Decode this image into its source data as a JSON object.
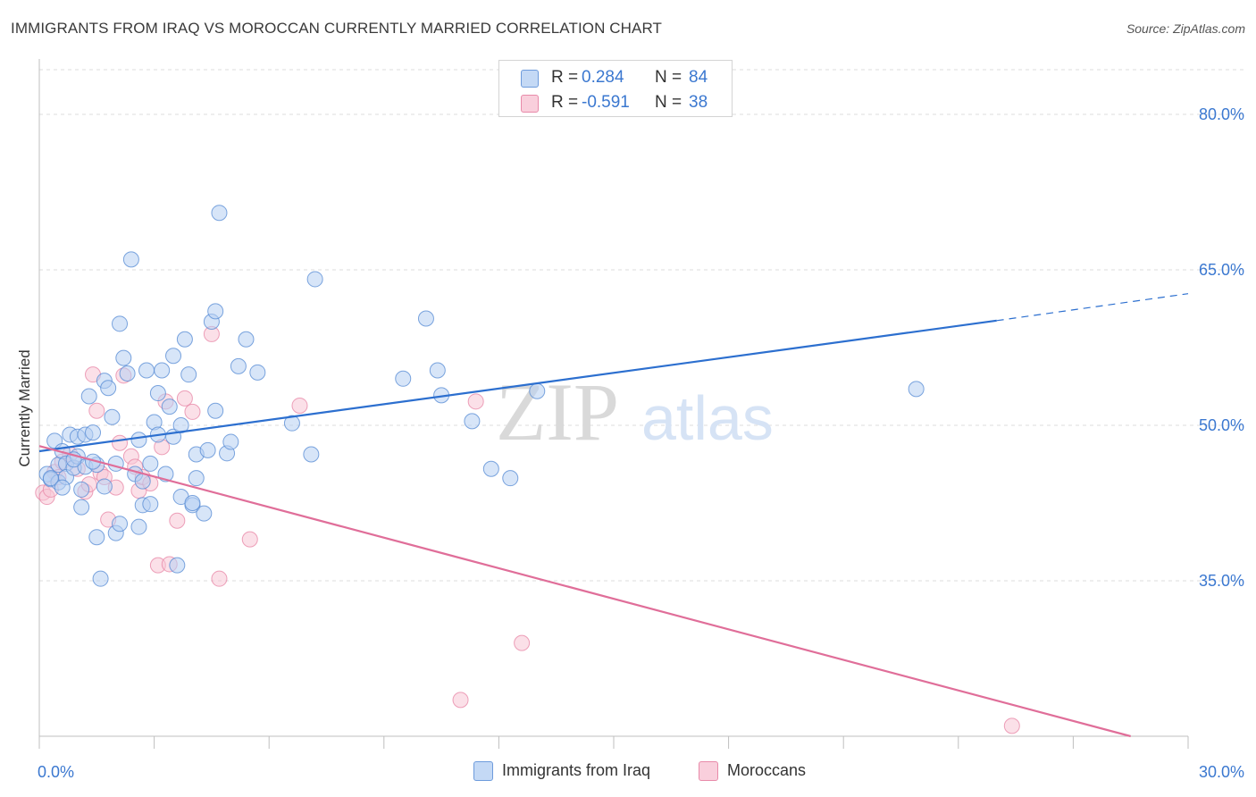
{
  "header": {
    "title": "IMMIGRANTS FROM IRAQ VS MOROCCAN CURRENTLY MARRIED CORRELATION CHART",
    "source": "Source: ZipAtlas.com"
  },
  "watermark": {
    "zip": "ZIP",
    "atlas": "atlas"
  },
  "legend": {
    "rows": [
      {
        "r_label": "R =",
        "r_value": "0.284",
        "n_label": "N =",
        "n_value": "84",
        "color": "#a9c8f0"
      },
      {
        "r_label": "R =",
        "r_value": "-0.591",
        "n_label": "N =",
        "n_value": "38",
        "color": "#f6b8cc"
      }
    ]
  },
  "bottom_legend": {
    "items": [
      {
        "label": "Immigrants from Iraq",
        "color": "#a9c8f0"
      },
      {
        "label": "Moroccans",
        "color": "#f6b8cc"
      }
    ]
  },
  "chart_data": {
    "type": "scatter",
    "title": "IMMIGRANTS FROM IRAQ VS MOROCCAN CURRENTLY MARRIED CORRELATION CHART",
    "xlabel": "",
    "ylabel": "Currently Married",
    "xlim": [
      0,
      30
    ],
    "ylim": [
      20,
      85
    ],
    "x_tick_labels": [
      "0.0%",
      "30.0%"
    ],
    "y_ticks": [
      35,
      50,
      65,
      80
    ],
    "y_tick_labels": [
      "35.0%",
      "50.0%",
      "65.0%",
      "80.0%"
    ],
    "grid": "horizontal dashed",
    "legend_position": "top-center",
    "colors": {
      "iraq": "#5b8fd6",
      "iraq_fill": "#b7d0f2",
      "iraq_line": "#2c6fcf",
      "moroccan": "#e88aa9",
      "moroccan_fill": "#f8c6d6",
      "moroccan_line": "#e06e99"
    },
    "series": [
      {
        "name": "Immigrants from Iraq",
        "points": [
          [
            0.2,
            45.3
          ],
          [
            0.3,
            44.8
          ],
          [
            0.4,
            48.5
          ],
          [
            0.5,
            46.2
          ],
          [
            0.5,
            44.5
          ],
          [
            0.6,
            47.5
          ],
          [
            0.7,
            46.3
          ],
          [
            0.7,
            45.0
          ],
          [
            0.8,
            49.1
          ],
          [
            0.9,
            45.9
          ],
          [
            1.0,
            48.9
          ],
          [
            1.0,
            47.0
          ],
          [
            1.1,
            43.8
          ],
          [
            1.1,
            42.1
          ],
          [
            1.2,
            46.0
          ],
          [
            1.2,
            49.1
          ],
          [
            1.3,
            52.8
          ],
          [
            1.4,
            49.3
          ],
          [
            1.5,
            46.2
          ],
          [
            1.5,
            39.2
          ],
          [
            1.6,
            35.2
          ],
          [
            1.7,
            44.1
          ],
          [
            1.7,
            54.3
          ],
          [
            1.8,
            53.6
          ],
          [
            1.9,
            50.8
          ],
          [
            2.0,
            39.6
          ],
          [
            2.0,
            46.3
          ],
          [
            2.1,
            40.5
          ],
          [
            2.1,
            59.8
          ],
          [
            2.2,
            56.5
          ],
          [
            2.3,
            55.0
          ],
          [
            2.4,
            66.0
          ],
          [
            2.5,
            45.3
          ],
          [
            2.6,
            40.2
          ],
          [
            2.6,
            48.6
          ],
          [
            2.7,
            44.6
          ],
          [
            2.7,
            42.3
          ],
          [
            2.8,
            55.3
          ],
          [
            2.9,
            42.4
          ],
          [
            2.9,
            46.3
          ],
          [
            3.0,
            50.3
          ],
          [
            3.1,
            49.1
          ],
          [
            3.1,
            53.1
          ],
          [
            3.2,
            55.3
          ],
          [
            3.3,
            45.3
          ],
          [
            3.4,
            51.8
          ],
          [
            3.5,
            48.9
          ],
          [
            3.5,
            56.7
          ],
          [
            3.6,
            36.5
          ],
          [
            3.7,
            43.1
          ],
          [
            3.7,
            50.0
          ],
          [
            3.8,
            58.3
          ],
          [
            3.9,
            54.9
          ],
          [
            4.0,
            42.3
          ],
          [
            4.0,
            42.5
          ],
          [
            4.1,
            44.9
          ],
          [
            4.1,
            47.2
          ],
          [
            4.3,
            41.5
          ],
          [
            4.4,
            47.6
          ],
          [
            4.5,
            60.0
          ],
          [
            4.6,
            51.4
          ],
          [
            4.6,
            61.0
          ],
          [
            4.7,
            70.5
          ],
          [
            4.9,
            47.3
          ],
          [
            5.0,
            48.4
          ],
          [
            5.2,
            55.7
          ],
          [
            5.4,
            58.3
          ],
          [
            5.7,
            55.1
          ],
          [
            6.6,
            50.2
          ],
          [
            7.1,
            47.2
          ],
          [
            7.2,
            64.1
          ],
          [
            9.5,
            54.5
          ],
          [
            10.1,
            60.3
          ],
          [
            10.4,
            55.3
          ],
          [
            10.5,
            52.9
          ],
          [
            11.3,
            50.4
          ],
          [
            11.8,
            45.8
          ],
          [
            12.3,
            44.9
          ],
          [
            13.0,
            53.3
          ],
          [
            22.9,
            53.5
          ],
          [
            0.3,
            44.9
          ],
          [
            0.6,
            44.0
          ],
          [
            0.9,
            46.7
          ],
          [
            1.4,
            46.5
          ]
        ]
      },
      {
        "name": "Moroccans",
        "points": [
          [
            0.1,
            43.5
          ],
          [
            0.2,
            43.1
          ],
          [
            0.3,
            43.8
          ],
          [
            0.4,
            45.5
          ],
          [
            0.5,
            45.0
          ],
          [
            0.6,
            46.5
          ],
          [
            0.8,
            47.2
          ],
          [
            1.0,
            45.8
          ],
          [
            1.2,
            43.6
          ],
          [
            1.3,
            44.3
          ],
          [
            1.4,
            54.9
          ],
          [
            1.5,
            51.4
          ],
          [
            1.6,
            45.4
          ],
          [
            1.7,
            45.0
          ],
          [
            1.8,
            40.9
          ],
          [
            2.0,
            44.0
          ],
          [
            2.1,
            48.3
          ],
          [
            2.2,
            54.8
          ],
          [
            2.4,
            47.0
          ],
          [
            2.5,
            46.0
          ],
          [
            2.6,
            43.7
          ],
          [
            2.7,
            45.0
          ],
          [
            2.9,
            44.4
          ],
          [
            3.1,
            36.5
          ],
          [
            3.2,
            47.9
          ],
          [
            3.3,
            52.3
          ],
          [
            3.4,
            36.6
          ],
          [
            3.6,
            40.8
          ],
          [
            3.8,
            52.6
          ],
          [
            4.0,
            51.3
          ],
          [
            4.5,
            58.8
          ],
          [
            4.7,
            35.2
          ],
          [
            5.5,
            39.0
          ],
          [
            6.8,
            51.9
          ],
          [
            11.4,
            52.3
          ],
          [
            11.0,
            23.5
          ],
          [
            12.6,
            29.0
          ],
          [
            25.4,
            21.0
          ]
        ]
      }
    ],
    "trend_lines": [
      {
        "series": "Immigrants from Iraq",
        "x_start": 0,
        "y_start": 47.5,
        "x_end": 25.0,
        "y_end": 60.1,
        "dashed_to_x": 30,
        "dashed_to_y": 62.7
      },
      {
        "series": "Moroccans",
        "x_start": 0,
        "y_start": 48.0,
        "x_end": 28.5,
        "y_end": 20.0
      }
    ]
  }
}
